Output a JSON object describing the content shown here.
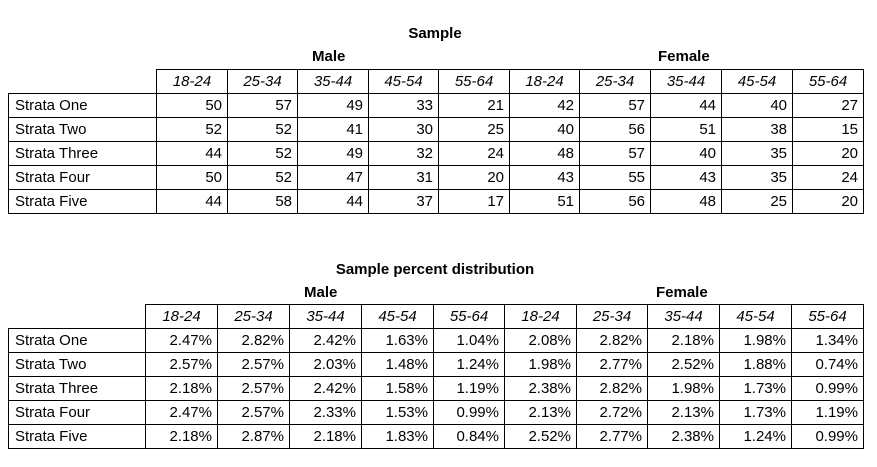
{
  "sample": {
    "title": "Sample",
    "group_male": "Male",
    "group_female": "Female",
    "age_headers": [
      "18-24",
      "25-34",
      "35-44",
      "45-54",
      "55-64",
      "18-24",
      "25-34",
      "35-44",
      "45-54",
      "55-64"
    ],
    "rows": [
      {
        "label": "Strata One",
        "values": [
          "50",
          "57",
          "49",
          "33",
          "21",
          "42",
          "57",
          "44",
          "40",
          "27"
        ]
      },
      {
        "label": "Strata Two",
        "values": [
          "52",
          "52",
          "41",
          "30",
          "25",
          "40",
          "56",
          "51",
          "38",
          "15"
        ]
      },
      {
        "label": "Strata Three",
        "values": [
          "44",
          "52",
          "49",
          "32",
          "24",
          "48",
          "57",
          "40",
          "35",
          "20"
        ]
      },
      {
        "label": "Strata Four",
        "values": [
          "50",
          "52",
          "47",
          "31",
          "20",
          "43",
          "55",
          "43",
          "35",
          "24"
        ]
      },
      {
        "label": "Strata Five",
        "values": [
          "44",
          "58",
          "44",
          "37",
          "17",
          "51",
          "56",
          "48",
          "25",
          "20"
        ]
      }
    ]
  },
  "percent": {
    "title": "Sample percent distribution",
    "group_male": "Male",
    "group_female": "Female",
    "age_headers": [
      "18-24",
      "25-34",
      "35-44",
      "45-54",
      "55-64",
      "18-24",
      "25-34",
      "35-44",
      "45-54",
      "55-64"
    ],
    "rows": [
      {
        "label": "Strata One",
        "values": [
          "2.47%",
          "2.82%",
          "2.42%",
          "1.63%",
          "1.04%",
          "2.08%",
          "2.82%",
          "2.18%",
          "1.98%",
          "1.34%"
        ]
      },
      {
        "label": "Strata Two",
        "values": [
          "2.57%",
          "2.57%",
          "2.03%",
          "1.48%",
          "1.24%",
          "1.98%",
          "2.77%",
          "2.52%",
          "1.88%",
          "0.74%"
        ]
      },
      {
        "label": "Strata Three",
        "values": [
          "2.18%",
          "2.57%",
          "2.42%",
          "1.58%",
          "1.19%",
          "2.38%",
          "2.82%",
          "1.98%",
          "1.73%",
          "0.99%"
        ]
      },
      {
        "label": "Strata Four",
        "values": [
          "2.47%",
          "2.57%",
          "2.33%",
          "1.53%",
          "0.99%",
          "2.13%",
          "2.72%",
          "2.13%",
          "1.73%",
          "1.19%"
        ]
      },
      {
        "label": "Strata Five",
        "values": [
          "2.18%",
          "2.87%",
          "2.18%",
          "1.83%",
          "0.84%",
          "2.52%",
          "2.77%",
          "2.38%",
          "1.24%",
          "0.99%"
        ]
      }
    ]
  }
}
